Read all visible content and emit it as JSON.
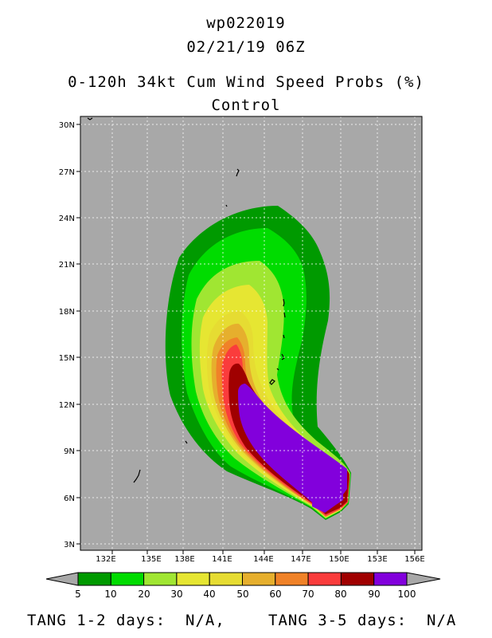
{
  "header": {
    "storm_id": "wp022019",
    "datetime": "02/21/19 06Z",
    "product": "0-120h 34kt Cum Wind Speed Probs (%)",
    "run": "Control"
  },
  "map": {
    "background_color": "#a8a8a8",
    "land_color": "#000000",
    "grid_style": "dotted white",
    "lat_labels": [
      "30N",
      "27N",
      "24N",
      "21N",
      "18N",
      "15N",
      "12N",
      "9N",
      "6N",
      "3N"
    ],
    "lon_labels": [
      "132E",
      "135E",
      "138E",
      "141E",
      "144E",
      "147E",
      "150E",
      "153E",
      "156E"
    ]
  },
  "colorbar": {
    "levels": [
      "5",
      "10",
      "20",
      "30",
      "40",
      "50",
      "60",
      "70",
      "80",
      "90",
      "100"
    ],
    "colors": [
      "#009a00",
      "#00dc00",
      "#a0e632",
      "#e6e632",
      "#e6dc32",
      "#e6af2d",
      "#f08228",
      "#fa3c3c",
      "#a00000",
      "#8200dc"
    ],
    "end_arrow_color": "#a8a8a8"
  },
  "footer": {
    "tang_1_2": "TANG 1-2 days:  N/A,",
    "tang_3_5": "TANG 3-5 days:  N/A"
  }
}
